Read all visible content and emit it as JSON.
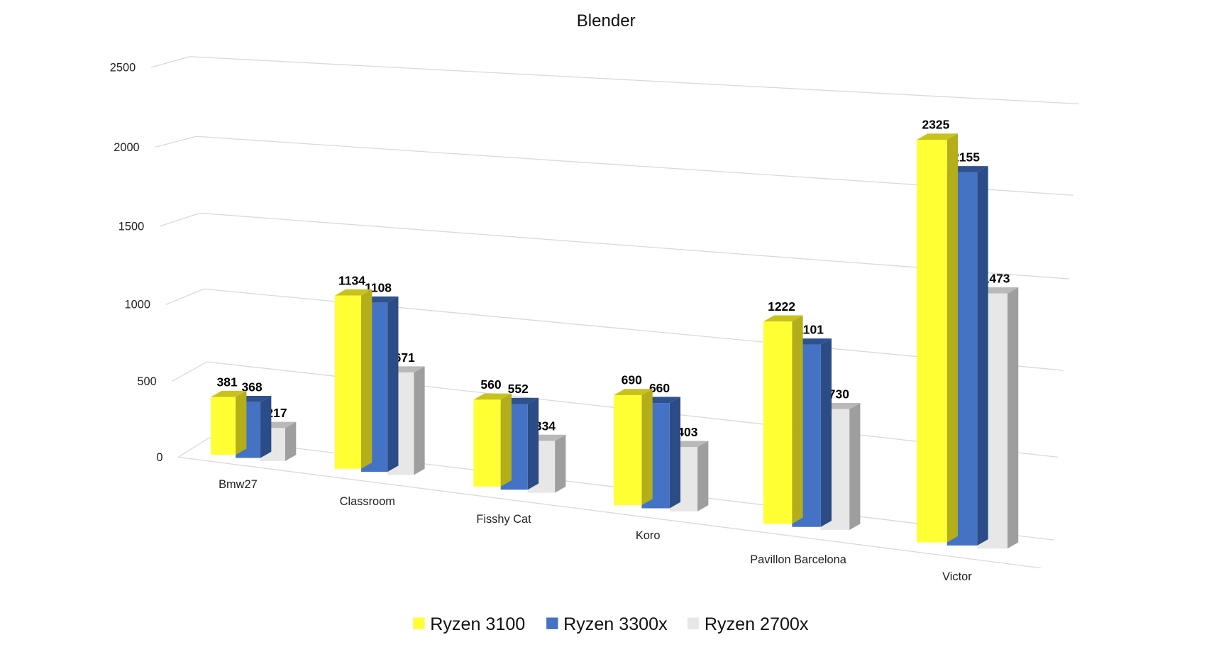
{
  "chart_data": {
    "type": "bar",
    "style": "3d-clustered",
    "title": "Blender",
    "xlabel": "",
    "ylabel": "",
    "ylim": [
      0,
      2500
    ],
    "yticks": [
      "0",
      "500",
      "1000",
      "1500",
      "2000",
      "2500"
    ],
    "grid": true,
    "legend_position": "bottom",
    "categories": [
      "Bmw27",
      "Classroom",
      "Fisshy Cat",
      "Koro",
      "Pavillon Barcelona",
      "Victor"
    ],
    "series": [
      {
        "name": "Ryzen 3100",
        "color": "#FFFF33",
        "top": "#C8C21E",
        "side": "#B3AE1A",
        "values": [
          381,
          1134,
          560,
          690,
          1222,
          2325
        ]
      },
      {
        "name": "Ryzen 3300x",
        "color": "#4472C4",
        "top": "#2F528F",
        "side": "#2B4C86",
        "values": [
          368,
          1108,
          552,
          660,
          1101,
          2155
        ]
      },
      {
        "name": "Ryzen 2700x",
        "color": "#E7E7E7",
        "top": "#B9B9B9",
        "side": "#9E9E9E",
        "values": [
          217,
          671,
          334,
          403,
          730,
          1473
        ]
      }
    ]
  }
}
